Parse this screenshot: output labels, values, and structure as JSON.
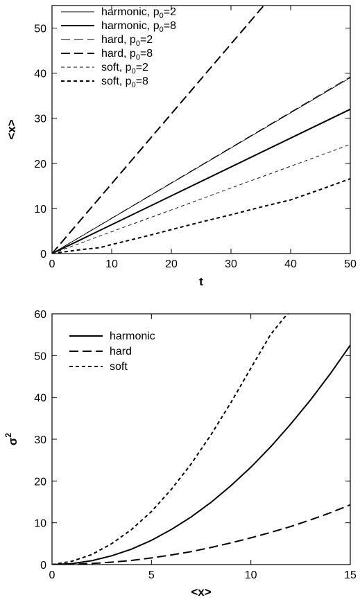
{
  "chart_data": [
    {
      "type": "line",
      "title": "",
      "xlabel": "t",
      "ylabel": "<x>",
      "xlim": [
        0,
        50
      ],
      "ylim": [
        0,
        55
      ],
      "xticks": [
        0,
        10,
        20,
        30,
        40,
        50
      ],
      "yticks": [
        0,
        10,
        20,
        30,
        40,
        50
      ],
      "grid": false,
      "legend_position": "top-left",
      "series": [
        {
          "name": "harmonic, p0=2",
          "label_main": "harmonic, p",
          "label_sub": "0",
          "label_tail": "=2",
          "style": "solid-thin",
          "x": [
            0,
            50
          ],
          "y": [
            0,
            39
          ]
        },
        {
          "name": "harmonic, p0=8",
          "label_main": "harmonic, p",
          "label_sub": "0",
          "label_tail": "=8",
          "style": "solid-thick",
          "x": [
            0,
            50
          ],
          "y": [
            0,
            32
          ]
        },
        {
          "name": "hard, p0=2",
          "label_main": "hard,   p",
          "label_sub": "0",
          "label_tail": "=2",
          "style": "longdash-thin",
          "x": [
            0,
            50
          ],
          "y": [
            0,
            39.2
          ]
        },
        {
          "name": "hard, p0=8",
          "label_main": "hard,   p",
          "label_sub": "0",
          "label_tail": "=8",
          "style": "longdash-thick",
          "x": [
            0,
            35.5
          ],
          "y": [
            0,
            55
          ]
        },
        {
          "name": "soft, p0=2",
          "label_main": "soft, p",
          "label_sub": "0",
          "label_tail": "=2",
          "style": "shortdash-thin",
          "x": [
            0,
            50
          ],
          "y": [
            0,
            24.2
          ]
        },
        {
          "name": "soft, p0=8",
          "label_main": "soft, p",
          "label_sub": "0",
          "label_tail": "=8",
          "style": "shortdash-thick",
          "x": [
            0,
            5,
            8,
            10,
            15,
            20,
            25,
            30,
            35,
            40,
            45,
            50
          ],
          "y": [
            0,
            0.9,
            1.3,
            2.0,
            3.6,
            5.3,
            7.0,
            8.6,
            10.3,
            11.9,
            14.2,
            16.6
          ]
        }
      ]
    },
    {
      "type": "line",
      "title": "",
      "xlabel": "<x>",
      "ylabel": "σ",
      "ylabel_superscript": "2",
      "xlim": [
        0,
        15
      ],
      "ylim": [
        0,
        60
      ],
      "xticks": [
        0,
        5,
        10,
        15
      ],
      "yticks": [
        0,
        10,
        20,
        30,
        40,
        50,
        60
      ],
      "grid": false,
      "legend_position": "top-left",
      "series": [
        {
          "name": "harmonic",
          "label_main": "harmonic",
          "style": "solid-thick",
          "x": [
            0,
            1,
            2,
            3,
            4,
            5,
            6,
            7,
            8,
            9,
            10,
            11,
            12,
            13,
            14,
            15
          ],
          "y": [
            0,
            0.23,
            0.93,
            2.1,
            3.7,
            5.8,
            8.4,
            11.4,
            14.9,
            18.9,
            23.3,
            28.2,
            33.6,
            39.4,
            45.7,
            52.5
          ]
        },
        {
          "name": "hard",
          "label_main": "hard",
          "style": "longdash-thick",
          "x": [
            0,
            1,
            2,
            3,
            4,
            5,
            6,
            7,
            8,
            9,
            10,
            11,
            12,
            13,
            14,
            15
          ],
          "y": [
            0,
            0.07,
            0.26,
            0.58,
            1.0,
            1.6,
            2.3,
            3.1,
            4.1,
            5.2,
            6.4,
            7.7,
            9.1,
            10.7,
            12.4,
            14.3
          ]
        },
        {
          "name": "soft",
          "label_main": "soft",
          "style": "shortdash-thick",
          "x": [
            0,
            1,
            2,
            3,
            4,
            5,
            6,
            7,
            8,
            9,
            10,
            11,
            11.8,
            12.2
          ],
          "y": [
            0,
            0.8,
            2.4,
            5.0,
            8.4,
            12.7,
            18.0,
            24.1,
            31.1,
            38.8,
            47.0,
            55.1,
            59.8,
            61
          ]
        }
      ]
    }
  ]
}
